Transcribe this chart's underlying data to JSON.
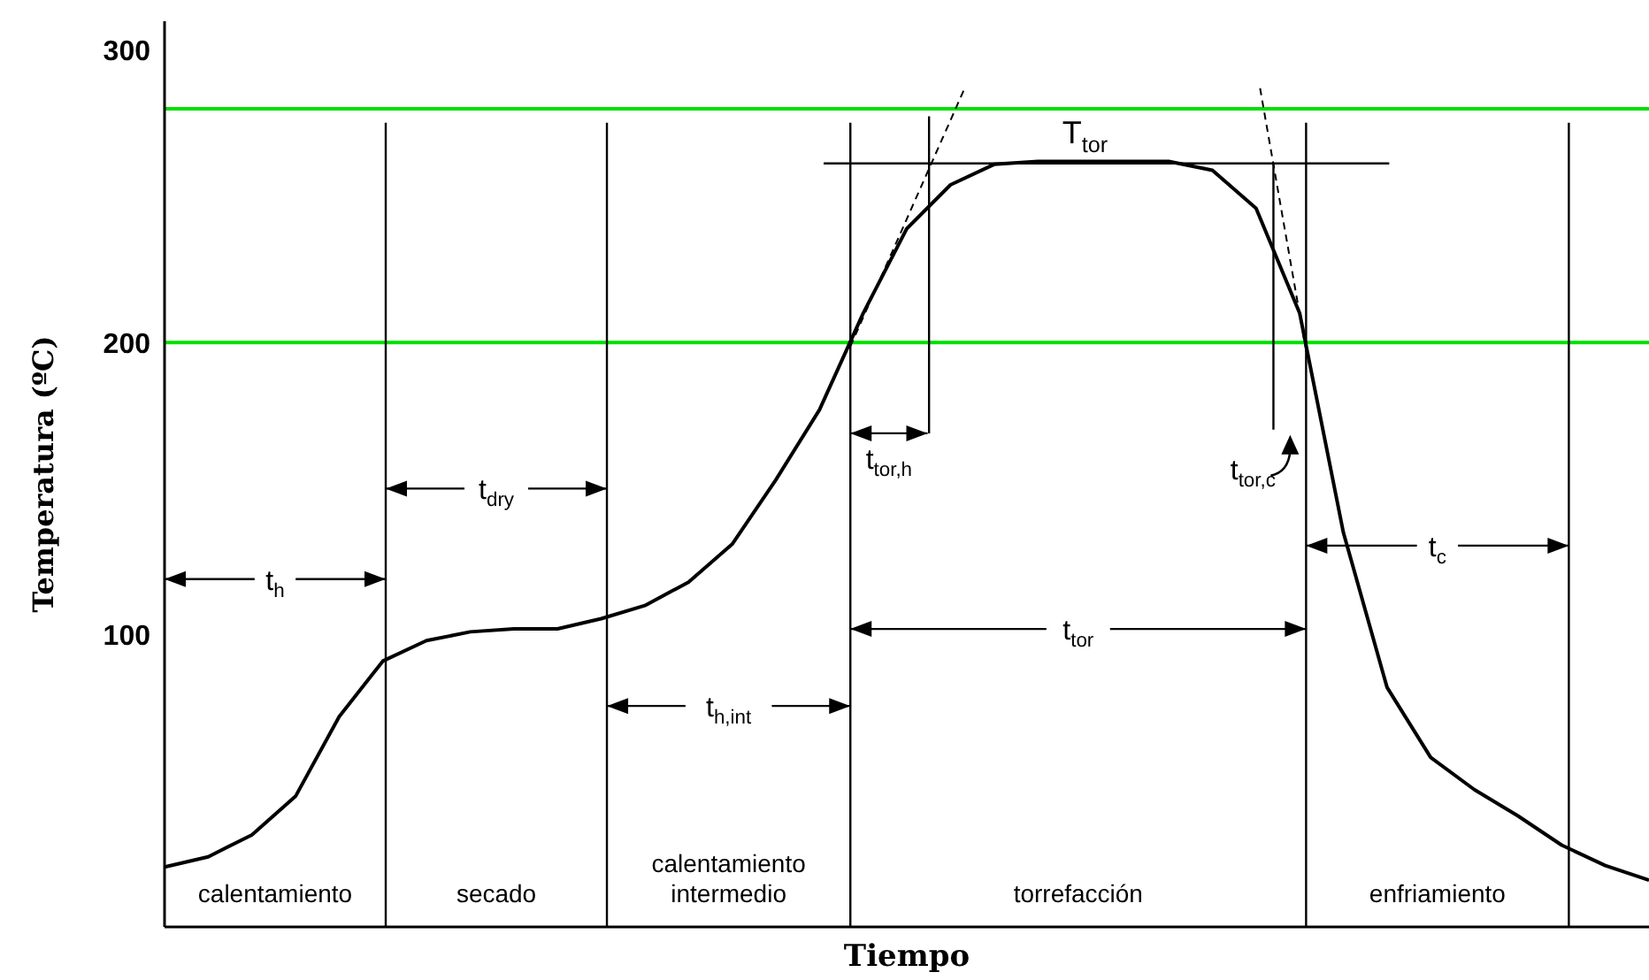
{
  "chart_data": {
    "type": "line",
    "xlabel": "Tiempo",
    "ylabel": "Temperatura (ºC)",
    "ylim": [
      0,
      310
    ],
    "yticks": [
      100,
      200,
      300
    ],
    "marker": "none",
    "categories": [
      null,
      null,
      null,
      null,
      null,
      null,
      null,
      null,
      null,
      null,
      null,
      null,
      null,
      null,
      null,
      null,
      null,
      null,
      null,
      null,
      null,
      null,
      null,
      null,
      null,
      null,
      null,
      null,
      null,
      null,
      null,
      null,
      null,
      null,
      null
    ],
    "series": [
      {
        "color": "#000000",
        "values": [
          20.5,
          24,
          31.5,
          44.7,
          72,
          91,
          98,
          101,
          102,
          102,
          105.5,
          110,
          118,
          131,
          153,
          177,
          210,
          239,
          254,
          261,
          262,
          262,
          262,
          262,
          259,
          246,
          210,
          135,
          82,
          58,
          47,
          38,
          28,
          21,
          16
        ]
      }
    ],
    "ref_lines": [
      {
        "axis": "y",
        "value": 280,
        "color": "#00e000"
      },
      {
        "axis": "y",
        "value": 200,
        "color": "#00e000"
      }
    ],
    "annotations": [
      "calentamiento",
      "secado",
      "calentamiento intermedio",
      "torrefacción",
      "enfriamiento",
      "T$_{tor}$",
      "t$_{h}$",
      "t$_{dry}$",
      "t$_{h,int}$",
      "t$_{tor,h}$",
      "t$_{tor}$",
      "t$_{c}$",
      "t$_{tor,c}$"
    ]
  }
}
